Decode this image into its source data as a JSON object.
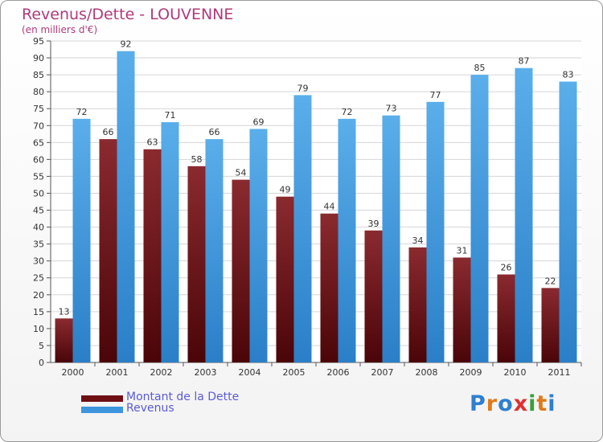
{
  "title": "Revenus/Dette - LOUVENNE",
  "subtitle": "(en milliers d'€)",
  "legend": [
    {
      "label": "Montant de la Dette",
      "color": "#6e0f14"
    },
    {
      "label": "Revenus",
      "color": "#3d95de"
    }
  ],
  "logo": {
    "text": "Proxiti",
    "colors": [
      "#2f7fd0",
      "#e07a1a",
      "#2f7fd0",
      "#e03030",
      "#3a9e3a",
      "#e07a1a",
      "#2f7fd0"
    ]
  },
  "chart_data": {
    "type": "bar",
    "categories": [
      "2000",
      "2001",
      "2002",
      "2003",
      "2004",
      "2005",
      "2006",
      "2007",
      "2008",
      "2009",
      "2010",
      "2011"
    ],
    "series": [
      {
        "name": "Montant de la Dette",
        "color": "#6e0f14",
        "values": [
          13,
          66,
          63,
          58,
          54,
          49,
          44,
          39,
          34,
          31,
          26,
          22
        ]
      },
      {
        "name": "Revenus",
        "color": "#3d95de",
        "values": [
          72,
          92,
          71,
          66,
          69,
          79,
          72,
          73,
          77,
          85,
          87,
          83
        ]
      }
    ],
    "ylim": [
      0,
      95
    ],
    "ytick_step": 5,
    "grid": true
  }
}
